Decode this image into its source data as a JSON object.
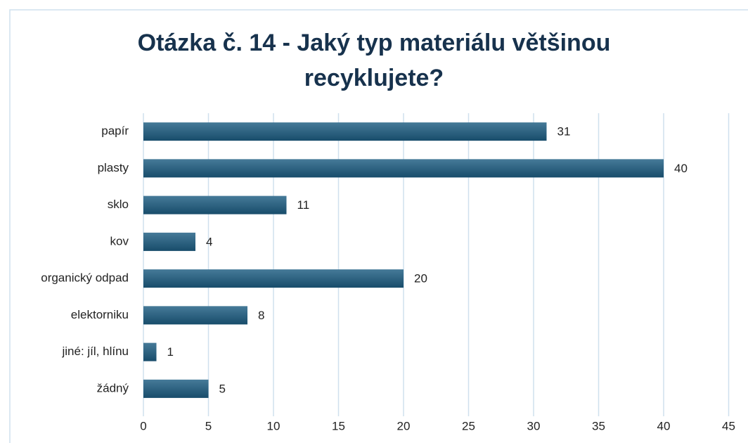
{
  "chart_data": {
    "type": "bar",
    "orientation": "horizontal",
    "title": "Otázka č. 14 - Jaký typ materiálu většinou recyklujete?",
    "categories": [
      "papír",
      "plasty",
      "sklo",
      "kov",
      "organický odpad",
      "elektorniku",
      "jiné: jíl, hlínu",
      "žádný"
    ],
    "values": [
      31,
      40,
      11,
      4,
      20,
      8,
      1,
      5
    ],
    "color": "#1d5d82",
    "xlim": [
      0,
      45
    ],
    "xticks": [
      0,
      5,
      10,
      15,
      20,
      25,
      30,
      35,
      40,
      45
    ],
    "grid": true
  }
}
